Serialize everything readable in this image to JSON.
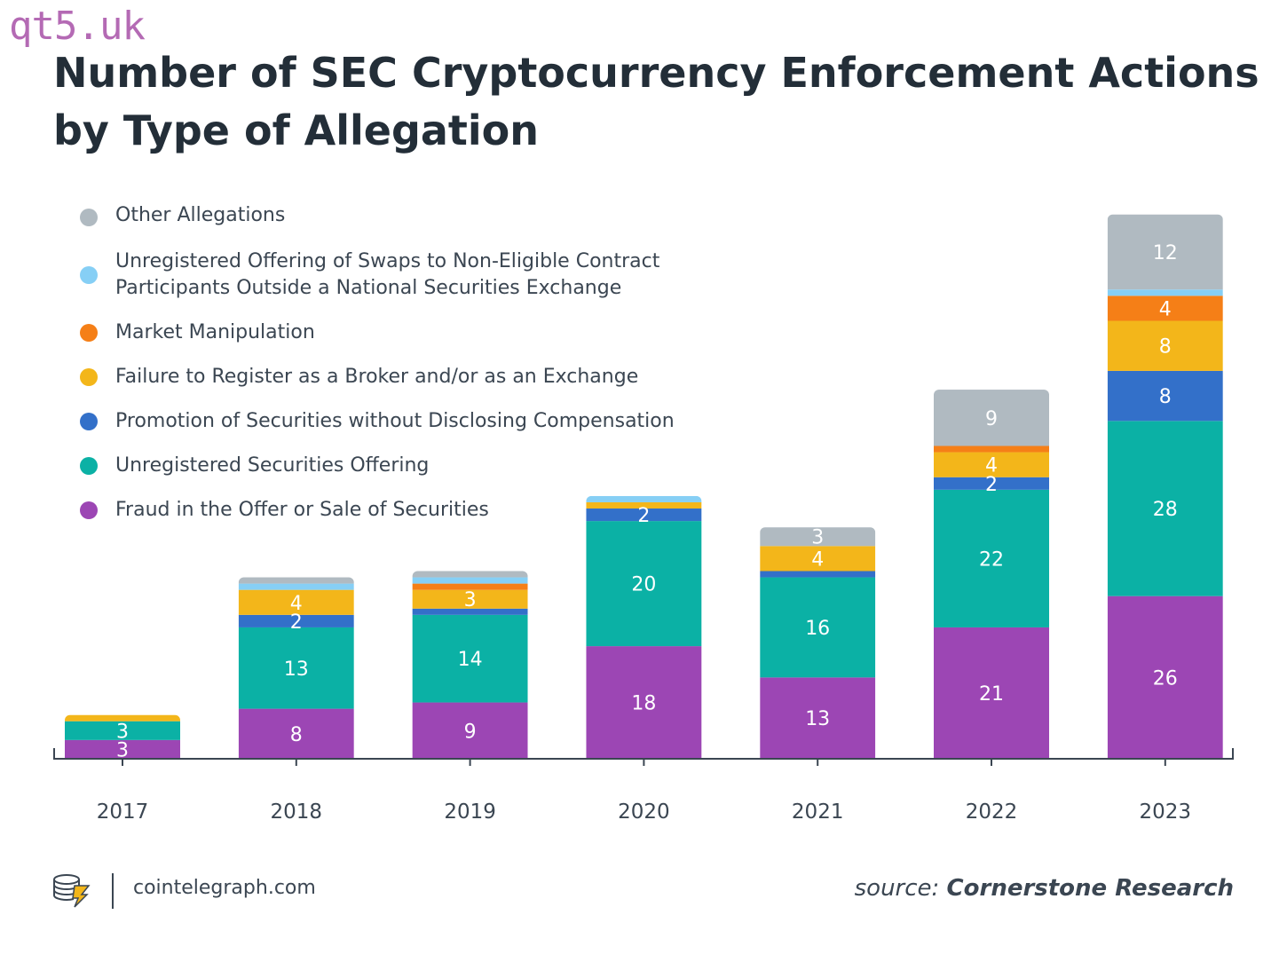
{
  "watermark": "qt5.uk",
  "title": "Number of SEC Cryptocurrency Enforcement Actions by Type of Allegation",
  "footer": {
    "brand": "cointelegraph.com",
    "source_prefix": "source:",
    "source_name": "Cornerstone Research"
  },
  "legend": [
    {
      "label": "Other Allegations",
      "color": "#b0bac1"
    },
    {
      "label": "Unregistered Offering of Swaps to Non-Eligible Contract Participants Outside a National Securities Exchange",
      "color": "#86cff5"
    },
    {
      "label": "Market Manipulation",
      "color": "#f57f17"
    },
    {
      "label": "Failure to Register as a Broker and/or as an Exchange",
      "color": "#f3b61a"
    },
    {
      "label": "Promotion of Securities without Disclosing Compensation",
      "color": "#3370c9"
    },
    {
      "label": "Unregistered Securities Offering",
      "color": "#0bb1a5"
    },
    {
      "label": "Fraud in the Offer or Sale of Securities",
      "color": "#9c46b4"
    }
  ],
  "chart_data": {
    "type": "bar",
    "stacked": true,
    "title": "Number of SEC Cryptocurrency Enforcement Actions by Type of Allegation",
    "categories": [
      "2017",
      "2018",
      "2019",
      "2020",
      "2021",
      "2022",
      "2023"
    ],
    "series": [
      {
        "name": "Fraud in the Offer or Sale of Securities",
        "color": "#9c46b4",
        "values": [
          3,
          8,
          9,
          18,
          13,
          21,
          26
        ],
        "labels": [
          "3",
          "8",
          "9",
          "18",
          "13",
          "21",
          "26"
        ]
      },
      {
        "name": "Unregistered Securities Offering",
        "color": "#0bb1a5",
        "values": [
          3,
          13,
          14,
          20,
          16,
          22,
          28
        ],
        "labels": [
          "3",
          "13",
          "14",
          "20",
          "16",
          "22",
          "28"
        ]
      },
      {
        "name": "Promotion of Securities without Disclosing Compensation",
        "color": "#3370c9",
        "values": [
          0,
          2,
          1,
          2,
          1,
          2,
          8
        ],
        "labels": [
          "",
          "2",
          "",
          "2",
          "",
          "2",
          "8"
        ]
      },
      {
        "name": "Failure to Register as a Broker and/or as an Exchange",
        "color": "#f3b61a",
        "values": [
          1,
          4,
          3,
          1,
          4,
          4,
          8
        ],
        "labels": [
          "",
          "4",
          "3",
          "",
          "4",
          "4",
          "8"
        ]
      },
      {
        "name": "Market Manipulation",
        "color": "#f57f17",
        "values": [
          0,
          0,
          1,
          0,
          0,
          1,
          4
        ],
        "labels": [
          "",
          "",
          "",
          "",
          "",
          "",
          "4"
        ]
      },
      {
        "name": "Unregistered Offering of Swaps to Non-Eligible Contract Participants Outside a National Securities Exchange",
        "color": "#86cff5",
        "values": [
          0,
          1,
          1,
          1,
          0,
          0,
          1
        ],
        "labels": [
          "",
          "",
          "",
          "",
          "",
          "",
          ""
        ]
      },
      {
        "name": "Other Allegations",
        "color": "#b0bac1",
        "values": [
          0,
          1,
          1,
          0,
          3,
          9,
          12
        ],
        "labels": [
          "",
          "",
          "",
          "",
          "3",
          "9",
          "12"
        ]
      }
    ],
    "ylim": [
      0,
      87
    ],
    "grid": false,
    "legend_position": "top-left"
  }
}
